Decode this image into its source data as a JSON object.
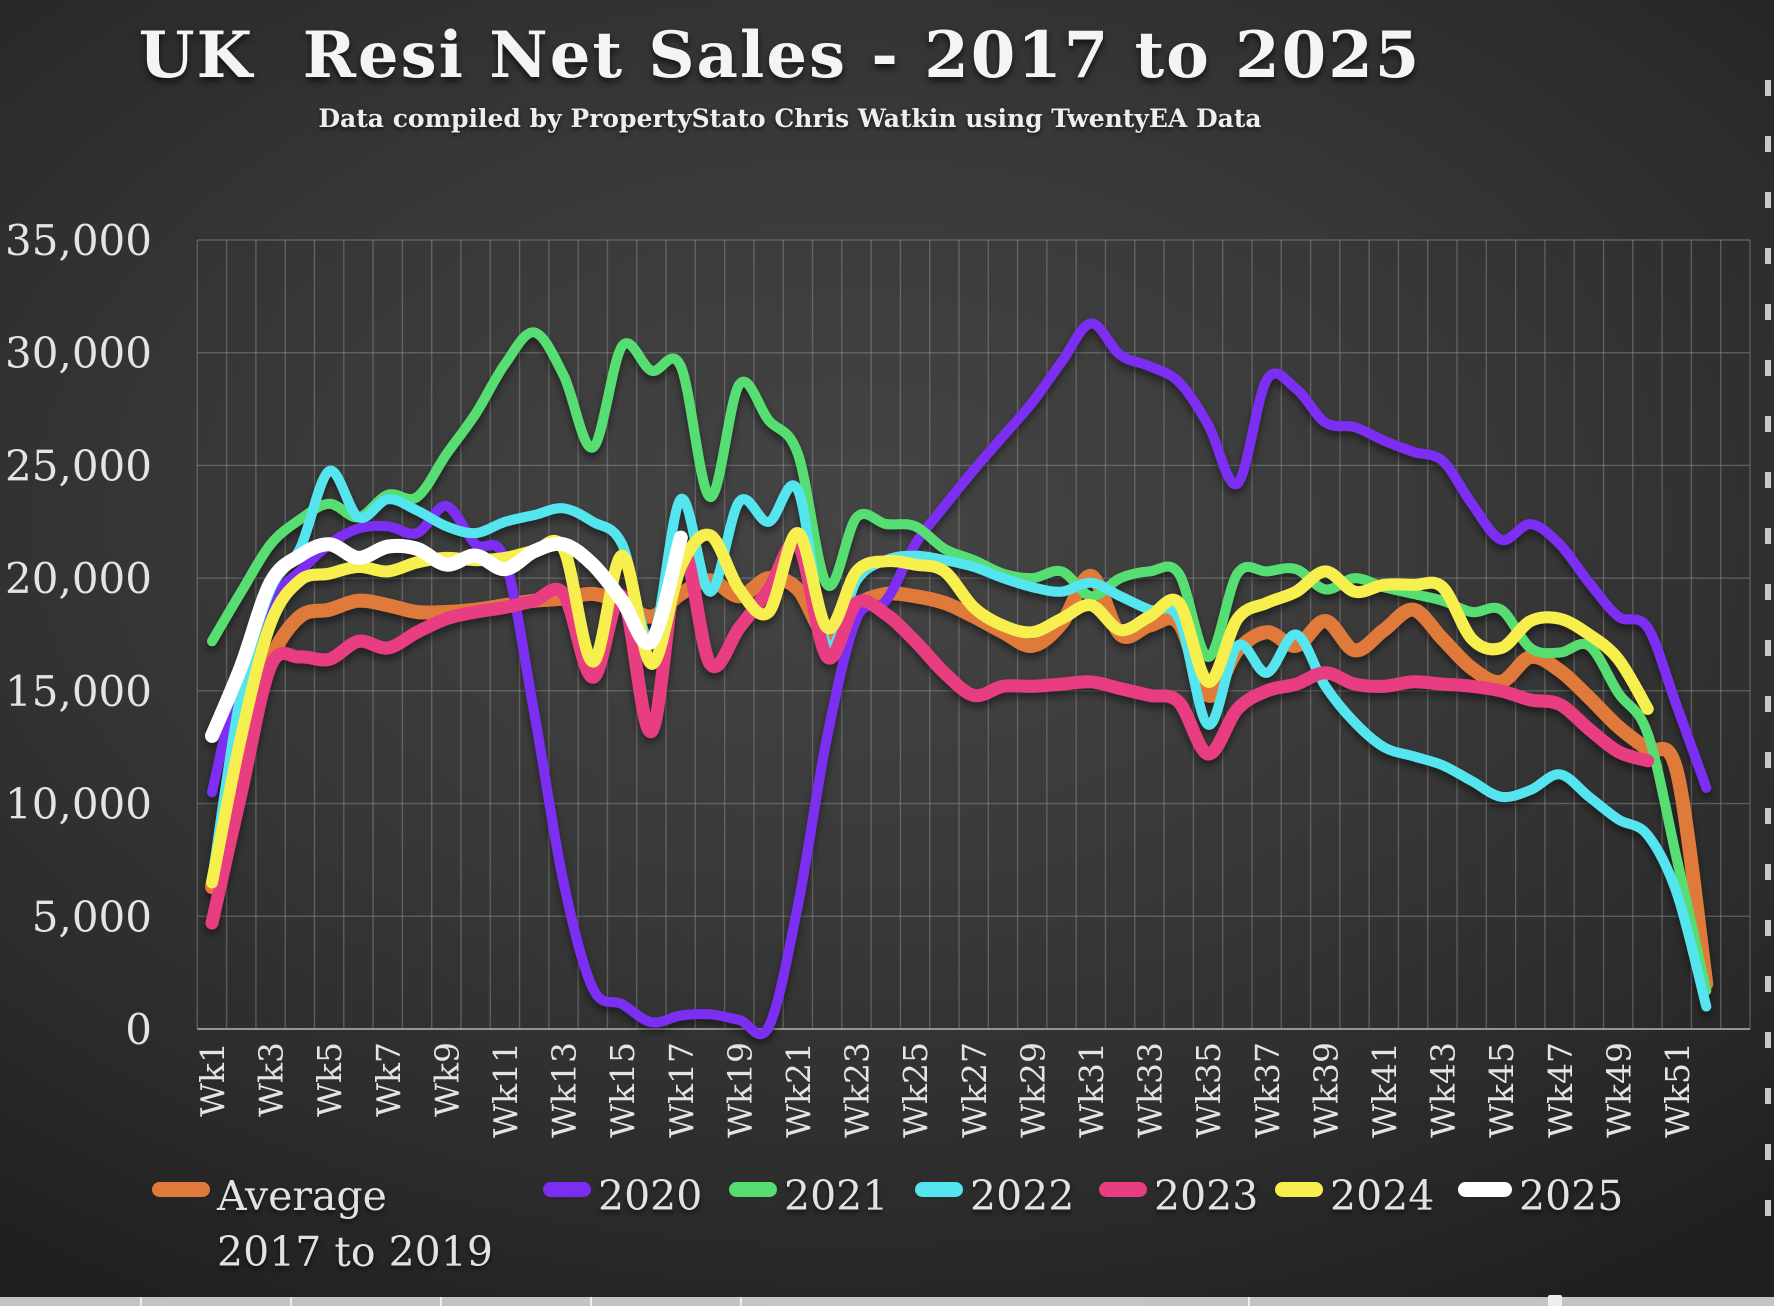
{
  "chart_data": {
    "type": "line",
    "title": "UK  Resi Net Sales - 2017 to 2025",
    "subtitle": "Data compiled by PropertyStato Chris Watkin using TwentyEA Data",
    "x_unit": "week",
    "x_count": 52,
    "x_tick_labels": [
      "Wk1",
      "Wk3",
      "Wk5",
      "Wk7",
      "Wk9",
      "Wk11",
      "Wk13",
      "Wk15",
      "Wk17",
      "Wk19",
      "Wk21",
      "Wk23",
      "Wk25",
      "Wk27",
      "Wk29",
      "Wk31",
      "Wk33",
      "Wk35",
      "Wk37",
      "Wk39",
      "Wk41",
      "Wk43",
      "Wk45",
      "Wk47",
      "Wk49",
      "Wk51"
    ],
    "y_ticks": [
      0,
      5000,
      10000,
      15000,
      20000,
      25000,
      30000,
      35000
    ],
    "ylim": [
      0,
      35000
    ],
    "grid": true,
    "legend_position": "bottom",
    "background_color": "#383838",
    "gridline_color": "#8a8a8a",
    "series": [
      {
        "name": "Average 2017 to 2019",
        "color": "#df7a3b",
        "width": 14,
        "values": [
          6300,
          12500,
          16400,
          18300,
          18600,
          19000,
          18800,
          18500,
          18500,
          18600,
          18800,
          19000,
          19100,
          19300,
          18900,
          18300,
          19300,
          19900,
          19200,
          20000,
          19500,
          17400,
          18800,
          19300,
          19200,
          18900,
          18300,
          17600,
          17000,
          18000,
          20100,
          17500,
          17900,
          18000,
          14800,
          16800,
          17600,
          17000,
          18100,
          16800,
          17700,
          18600,
          17300,
          16000,
          15400,
          16500,
          15900,
          14700,
          13400,
          12400,
          11400,
          2000
        ]
      },
      {
        "name": "2020",
        "color": "#7b2ef2",
        "width": 10,
        "values": [
          10500,
          16000,
          19000,
          20300,
          21500,
          22200,
          22300,
          22000,
          23200,
          21500,
          20800,
          14000,
          6500,
          1800,
          1100,
          300,
          600,
          650,
          400,
          100,
          5500,
          13000,
          18200,
          19000,
          21500,
          23200,
          24800,
          26300,
          27800,
          29600,
          31300,
          29900,
          29400,
          28700,
          26800,
          24200,
          28800,
          28400,
          26900,
          26700,
          26100,
          25600,
          25200,
          23300,
          21700,
          22400,
          21500,
          19800,
          18300,
          17800,
          14300,
          10700
        ]
      },
      {
        "name": "2021",
        "color": "#57de72",
        "width": 10,
        "values": [
          17200,
          19400,
          21500,
          22600,
          23300,
          22700,
          23700,
          23600,
          25500,
          27300,
          29500,
          30900,
          29000,
          25800,
          30300,
          29200,
          29400,
          23600,
          28600,
          27000,
          25500,
          19700,
          22700,
          22400,
          22300,
          21300,
          20800,
          20200,
          20000,
          20300,
          19200,
          20000,
          20300,
          20200,
          16500,
          20200,
          20300,
          20400,
          19500,
          20000,
          19600,
          19300,
          19000,
          18500,
          18600,
          16900,
          16700,
          17000,
          14900,
          13100,
          7500,
          1700
        ]
      },
      {
        "name": "2022",
        "color": "#55e5ef",
        "width": 10,
        "values": [
          6600,
          15000,
          19500,
          21300,
          24750,
          22700,
          23500,
          23000,
          22300,
          22000,
          22500,
          22800,
          23100,
          22500,
          21500,
          17200,
          23500,
          19400,
          23400,
          22500,
          23900,
          17000,
          19900,
          20800,
          21000,
          20800,
          20500,
          20000,
          19600,
          19400,
          19800,
          19200,
          18600,
          18200,
          13500,
          17000,
          15800,
          17500,
          15200,
          13600,
          12500,
          12100,
          11700,
          11000,
          10300,
          10600,
          11300,
          10300,
          9300,
          8600,
          6000,
          1000
        ]
      },
      {
        "name": "2023",
        "color": "#e83d80",
        "width": 13,
        "values": [
          4700,
          10500,
          16100,
          16500,
          16400,
          17200,
          16900,
          17600,
          18200,
          18500,
          18700,
          19000,
          19300,
          15600,
          19200,
          13200,
          21300,
          16200,
          17800,
          19500,
          21500,
          16500,
          18900,
          18400,
          17200,
          15800,
          14800,
          15200,
          15200,
          15300,
          15400,
          15100,
          14800,
          14500,
          12200,
          14200,
          15000,
          15300,
          15800,
          15300,
          15200,
          15400,
          15300,
          15200,
          15000,
          14600,
          14400,
          13300,
          12300,
          11900,
          null,
          null
        ]
      },
      {
        "name": "2024",
        "color": "#f6ef4d",
        "width": 12,
        "values": [
          6500,
          13000,
          18000,
          19900,
          20200,
          20500,
          20300,
          20700,
          20900,
          20800,
          20900,
          21200,
          21300,
          16300,
          21000,
          16200,
          20500,
          21900,
          19500,
          18500,
          22000,
          17800,
          20300,
          20750,
          20600,
          20300,
          18700,
          17900,
          17600,
          18200,
          18800,
          17700,
          18300,
          18900,
          15400,
          18200,
          18900,
          19400,
          20300,
          19400,
          19700,
          19700,
          19600,
          17300,
          16900,
          18100,
          18200,
          17500,
          16400,
          14200,
          null,
          null
        ]
      },
      {
        "name": "2025",
        "color": "#ffffff",
        "width": 14,
        "values": [
          13000,
          16100,
          19800,
          21000,
          21500,
          20900,
          21400,
          21300,
          20600,
          21000,
          20400,
          21200,
          21500,
          20600,
          19000,
          17200,
          21800,
          null,
          null,
          null,
          null,
          null,
          null,
          null,
          null,
          null,
          null,
          null,
          null,
          null,
          null,
          null,
          null,
          null,
          null,
          null,
          null,
          null,
          null,
          null,
          null,
          null,
          null,
          null,
          null,
          null,
          null,
          null,
          null,
          null,
          null,
          null
        ]
      }
    ]
  }
}
